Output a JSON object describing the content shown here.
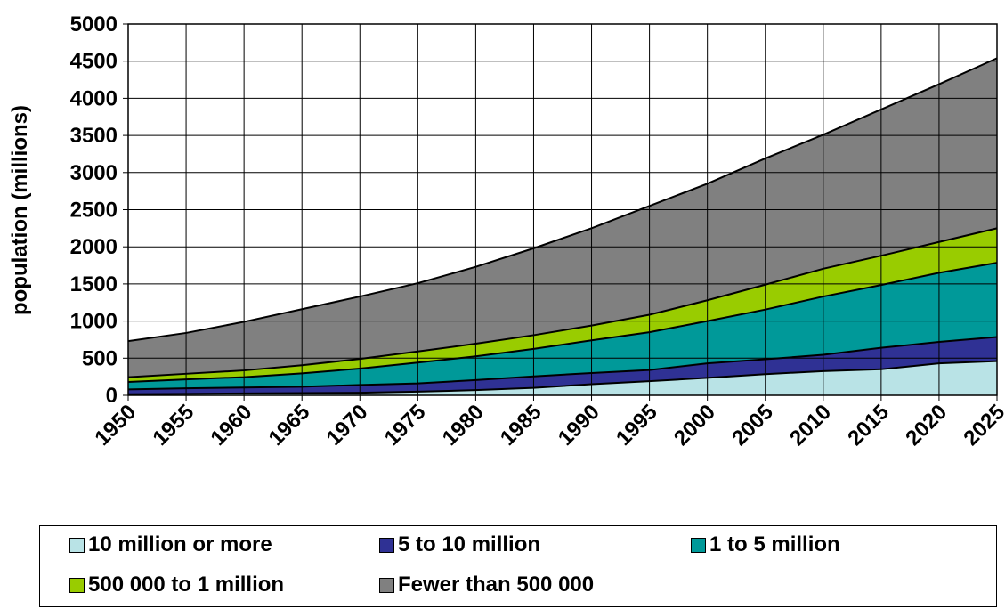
{
  "chart_data": {
    "type": "area",
    "stacked": true,
    "title": "",
    "xlabel": "",
    "ylabel": "population (millions)",
    "ylim": [
      0,
      5000
    ],
    "yticks": [
      "0",
      "500",
      "1000",
      "1500",
      "2000",
      "2500",
      "3000",
      "3500",
      "4000",
      "4500",
      "5000"
    ],
    "categories": [
      "1950",
      "1955",
      "1960",
      "1965",
      "1970",
      "1975",
      "1980",
      "1985",
      "1990",
      "1995",
      "2000",
      "2005",
      "2010",
      "2015",
      "2020",
      "2025"
    ],
    "grid": true,
    "legend_position": "bottom",
    "series": [
      {
        "name": "10 million or more",
        "color": "#b9e3e6",
        "values": [
          15,
          20,
          25,
          30,
          35,
          50,
          70,
          100,
          150,
          190,
          235,
          285,
          325,
          350,
          430,
          460
        ]
      },
      {
        "name": "5 to 10 million",
        "color": "#2f3194",
        "values": [
          65,
          75,
          80,
          85,
          105,
          110,
          135,
          155,
          150,
          150,
          195,
          200,
          220,
          290,
          290,
          325
        ]
      },
      {
        "name": "1 to 5 million",
        "color": "#009999",
        "values": [
          100,
          120,
          140,
          180,
          220,
          280,
          320,
          370,
          440,
          510,
          570,
          670,
          785,
          845,
          930,
          1000
        ]
      },
      {
        "name": "500 000 to 1 million",
        "color": "#99cc00",
        "values": [
          65,
          75,
          90,
          110,
          130,
          150,
          170,
          185,
          200,
          235,
          280,
          335,
          375,
          395,
          415,
          465
        ]
      },
      {
        "name": "Fewer than 500 000",
        "color": "#808080",
        "values": [
          485,
          550,
          655,
          755,
          840,
          920,
          1035,
          1170,
          1310,
          1465,
          1570,
          1700,
          1805,
          1970,
          2125,
          2290
        ]
      }
    ]
  }
}
